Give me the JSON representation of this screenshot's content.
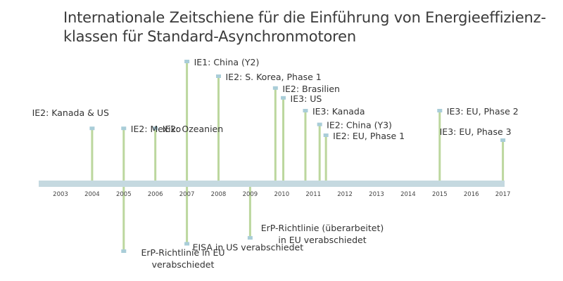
{
  "title": {
    "line1": "Internationale Zeitschiene für die Einführung von Energieeffizienz-",
    "line2": "klassen für Standard-Asynchronmotoren"
  },
  "colors": {
    "axis": "#c5d9e0",
    "stem": "#bcd79e",
    "marker": "#a9cdd8",
    "text": "#333333"
  },
  "years": [
    "2003",
    "2004",
    "2005",
    "2006",
    "2007",
    "2008",
    "2009",
    "2010",
    "2011",
    "2012",
    "2013",
    "2014",
    "2015",
    "2016",
    "2017"
  ],
  "events_above": [
    {
      "year": 2004.0,
      "level": 0.32,
      "label": [
        "IE2: Kanada & US"
      ]
    },
    {
      "year": 2005.0,
      "level": 0.32,
      "label": [
        "IE2: Mexiko"
      ]
    },
    {
      "year": 2006.0,
      "level": 0.32,
      "label": [
        "IE2: Ozeanien"
      ]
    },
    {
      "year": 2007.0,
      "level": 1.0,
      "label": [
        "IE1: China (Y2)"
      ]
    },
    {
      "year": 2008.0,
      "level": 0.85,
      "label": [
        "IE2: S. Korea, Phase 1"
      ]
    },
    {
      "year": 2009.8,
      "level": 0.73,
      "label": [
        "IE2: Brasilien"
      ]
    },
    {
      "year": 2010.05,
      "level": 0.63,
      "label": [
        "IE3: US"
      ]
    },
    {
      "year": 2010.75,
      "level": 0.5,
      "label": [
        "IE3: Kanada"
      ]
    },
    {
      "year": 2011.2,
      "level": 0.36,
      "label": [
        "IE2: China (Y3)"
      ]
    },
    {
      "year": 2011.4,
      "level": 0.25,
      "label": [
        "IE2: EU, Phase 1"
      ]
    },
    {
      "year": 2015.0,
      "level": 0.5,
      "label": [
        "IE3: EU, Phase 2"
      ]
    },
    {
      "year": 2017.0,
      "level": 0.2,
      "label": [
        "IE3: EU, Phase 3"
      ]
    }
  ],
  "events_below": [
    {
      "year": 2005.0,
      "level": 1.0,
      "label": [
        "ErP-Richtlinie in EU",
        "verabschiedet"
      ]
    },
    {
      "year": 2007.0,
      "level": 0.75,
      "label": [
        "EISA in US verabschiedet"
      ]
    },
    {
      "year": 2009.0,
      "level": 0.55,
      "label": [
        "ErP-Richtlinie (überarbeitet)",
        "in EU verabschiedet"
      ]
    }
  ]
}
